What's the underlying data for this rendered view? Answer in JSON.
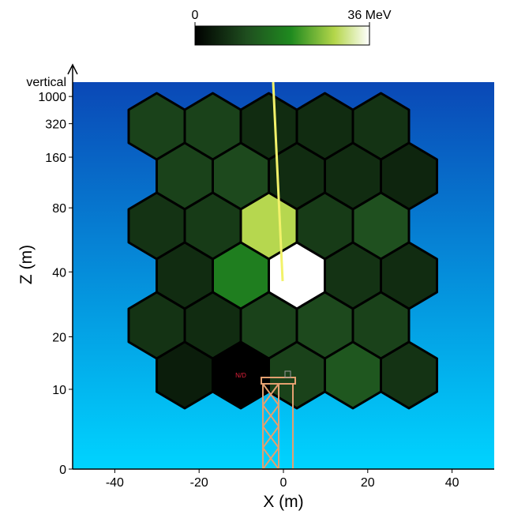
{
  "chart_data": {
    "type": "hexmap",
    "x_label": "X (m)",
    "y_label": "Z (m)",
    "xlim": [
      -50,
      50
    ],
    "xticks": [
      -40,
      -20,
      0,
      20,
      40
    ],
    "yticks": [
      0,
      10,
      20,
      40,
      80,
      160,
      320,
      1000
    ],
    "y_top_label": "vertical",
    "colorbar": {
      "lim": [
        0,
        36
      ],
      "ticks": [
        0,
        {
          "value": 36,
          "label": "36 MeV"
        }
      ]
    },
    "colorscale": [
      [
        0,
        "#000000"
      ],
      [
        0.3,
        "#1f4f1f"
      ],
      [
        0.55,
        "#1f8a1f"
      ],
      [
        0.8,
        "#b4d64a"
      ],
      [
        1,
        "#ffffff"
      ]
    ],
    "missing_label": "N/D",
    "values": [
      [
        9,
        9,
        6,
        6,
        7
      ],
      [
        9,
        10,
        6,
        6,
        5
      ],
      [
        7,
        8,
        29,
        8,
        11
      ],
      [
        6,
        18,
        36,
        7,
        6
      ],
      [
        7,
        6,
        9,
        10,
        9
      ],
      [
        4,
        null,
        9,
        12,
        7
      ]
    ]
  }
}
